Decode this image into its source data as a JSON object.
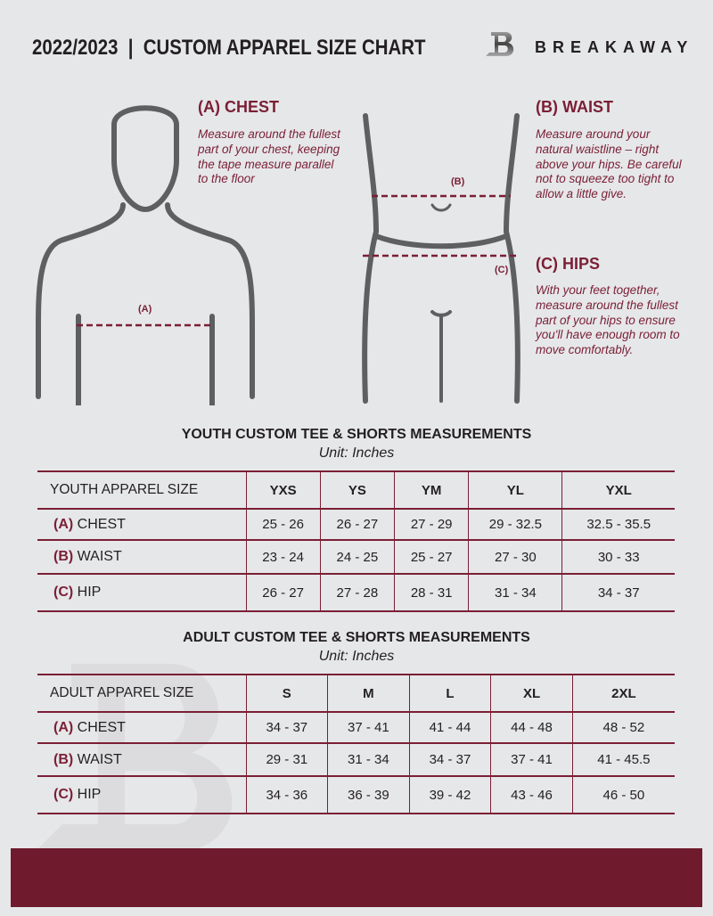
{
  "header": {
    "title": "2022/2023  |  CUSTOM APPAREL SIZE CHART",
    "brand": "BREAKAWAY",
    "logo_letter": "B"
  },
  "chest": {
    "heading": "(A) CHEST",
    "text": "Measure around the fullest part of your chest, keeping the tape measure parallel to the floor",
    "marker": "(A)"
  },
  "waist": {
    "heading": "(B) WAIST",
    "text": "Measure around your natural waistline – right above your hips. Be careful not to squeeze too tight to allow a little give.",
    "marker": "(B)"
  },
  "hips": {
    "heading": "(C) HIPS",
    "text": "With your feet together, measure around the fullest part of your hips to ensure you'll have enough room to move comfortably.",
    "marker": "(C)"
  },
  "youth": {
    "title": "YOUTH CUSTOM TEE & SHORTS MEASUREMENTS",
    "unit": "Unit: Inches",
    "header": [
      "YOUTH APPAREL SIZE",
      "YXS",
      "YS",
      "YM",
      "YL",
      "YXL"
    ],
    "rows": [
      {
        "letter": "(A)",
        "label": "CHEST",
        "values": [
          "25 - 26",
          "26 - 27",
          "27 - 29",
          "29 - 32.5",
          "32.5 - 35.5"
        ]
      },
      {
        "letter": "(B)",
        "label": "WAIST",
        "values": [
          "23 - 24",
          "24 - 25",
          "25 - 27",
          "27 - 30",
          "30 - 33"
        ]
      },
      {
        "letter": "(C)",
        "label": "HIP",
        "values": [
          "26 - 27",
          "27 - 28",
          "28 - 31",
          "31 - 34",
          "34 - 37"
        ]
      }
    ]
  },
  "adult": {
    "title": "ADULT CUSTOM TEE & SHORTS MEASUREMENTS",
    "unit": "Unit: Inches",
    "header": [
      "ADULT APPAREL SIZE",
      "S",
      "M",
      "L",
      "XL",
      "2XL"
    ],
    "rows": [
      {
        "letter": "(A)",
        "label": "CHEST",
        "values": [
          "34 - 37",
          "37 - 41",
          "41 - 44",
          "44 - 48",
          "48 - 52"
        ]
      },
      {
        "letter": "(B)",
        "label": "WAIST",
        "values": [
          "29 - 31",
          "31 - 34",
          "34 - 37",
          "37 - 41",
          "41 - 45.5"
        ]
      },
      {
        "letter": "(C)",
        "label": "HIP",
        "values": [
          "34 - 36",
          "36 - 39",
          "39 - 42",
          "43 - 46",
          "46 - 50"
        ]
      }
    ]
  },
  "colors": {
    "accent": "#7a1f35",
    "footer": "#6f1a2d",
    "background": "#e6e7e9"
  }
}
